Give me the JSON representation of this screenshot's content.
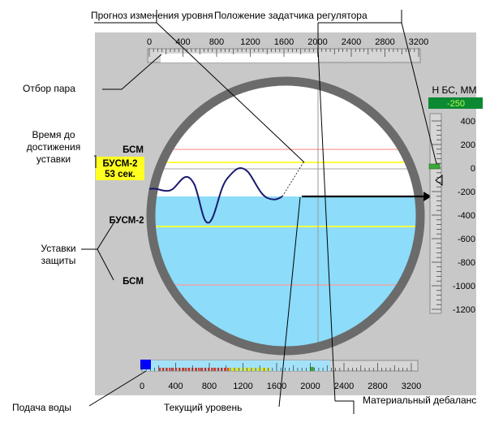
{
  "callouts": {
    "level_forecast": "Прогноз изменения уровня",
    "regulator_setpoint": "Положение задатчика регулятора",
    "steam_extraction": "Отбор пара",
    "time_to_setpoint_1": "Время  до",
    "time_to_setpoint_2": "достижения",
    "time_to_setpoint_3": "уставки",
    "protection_setpoints_1": "Уставки",
    "protection_setpoints_2": "защиты",
    "water_supply": "Подача воды",
    "current_level": "Текущий уровень",
    "material_imbalance": "Материальный дебаланс"
  },
  "setpoint_labels": {
    "bsm_upper": "БСМ",
    "busm2_upper": "БУСМ-2",
    "busm2_lower": "БУСМ-2",
    "bsm_lower": "БСМ",
    "time_value": "53 сек."
  },
  "level_scale": {
    "title": "Н БС, ММ",
    "current_value": "-250",
    "ticks": [
      "400",
      "200",
      "0",
      "-200",
      "-400",
      "-600",
      "-800",
      "-1000",
      "-1200"
    ]
  },
  "flow_scale": {
    "ticks": [
      "0",
      "400",
      "800",
      "1200",
      "1600",
      "2000",
      "2400",
      "2800",
      "3200"
    ]
  },
  "colors": {
    "panel": "#c8c8c8",
    "drum_ring": "#6b6b6b",
    "water": "#8cdcfa",
    "bsm_line": "#ff9a9a",
    "busm_line": "#ffff40",
    "time_box": "#ffff20",
    "value_box": "#0b8a33",
    "feed_bar": "#a3e2f8"
  }
}
